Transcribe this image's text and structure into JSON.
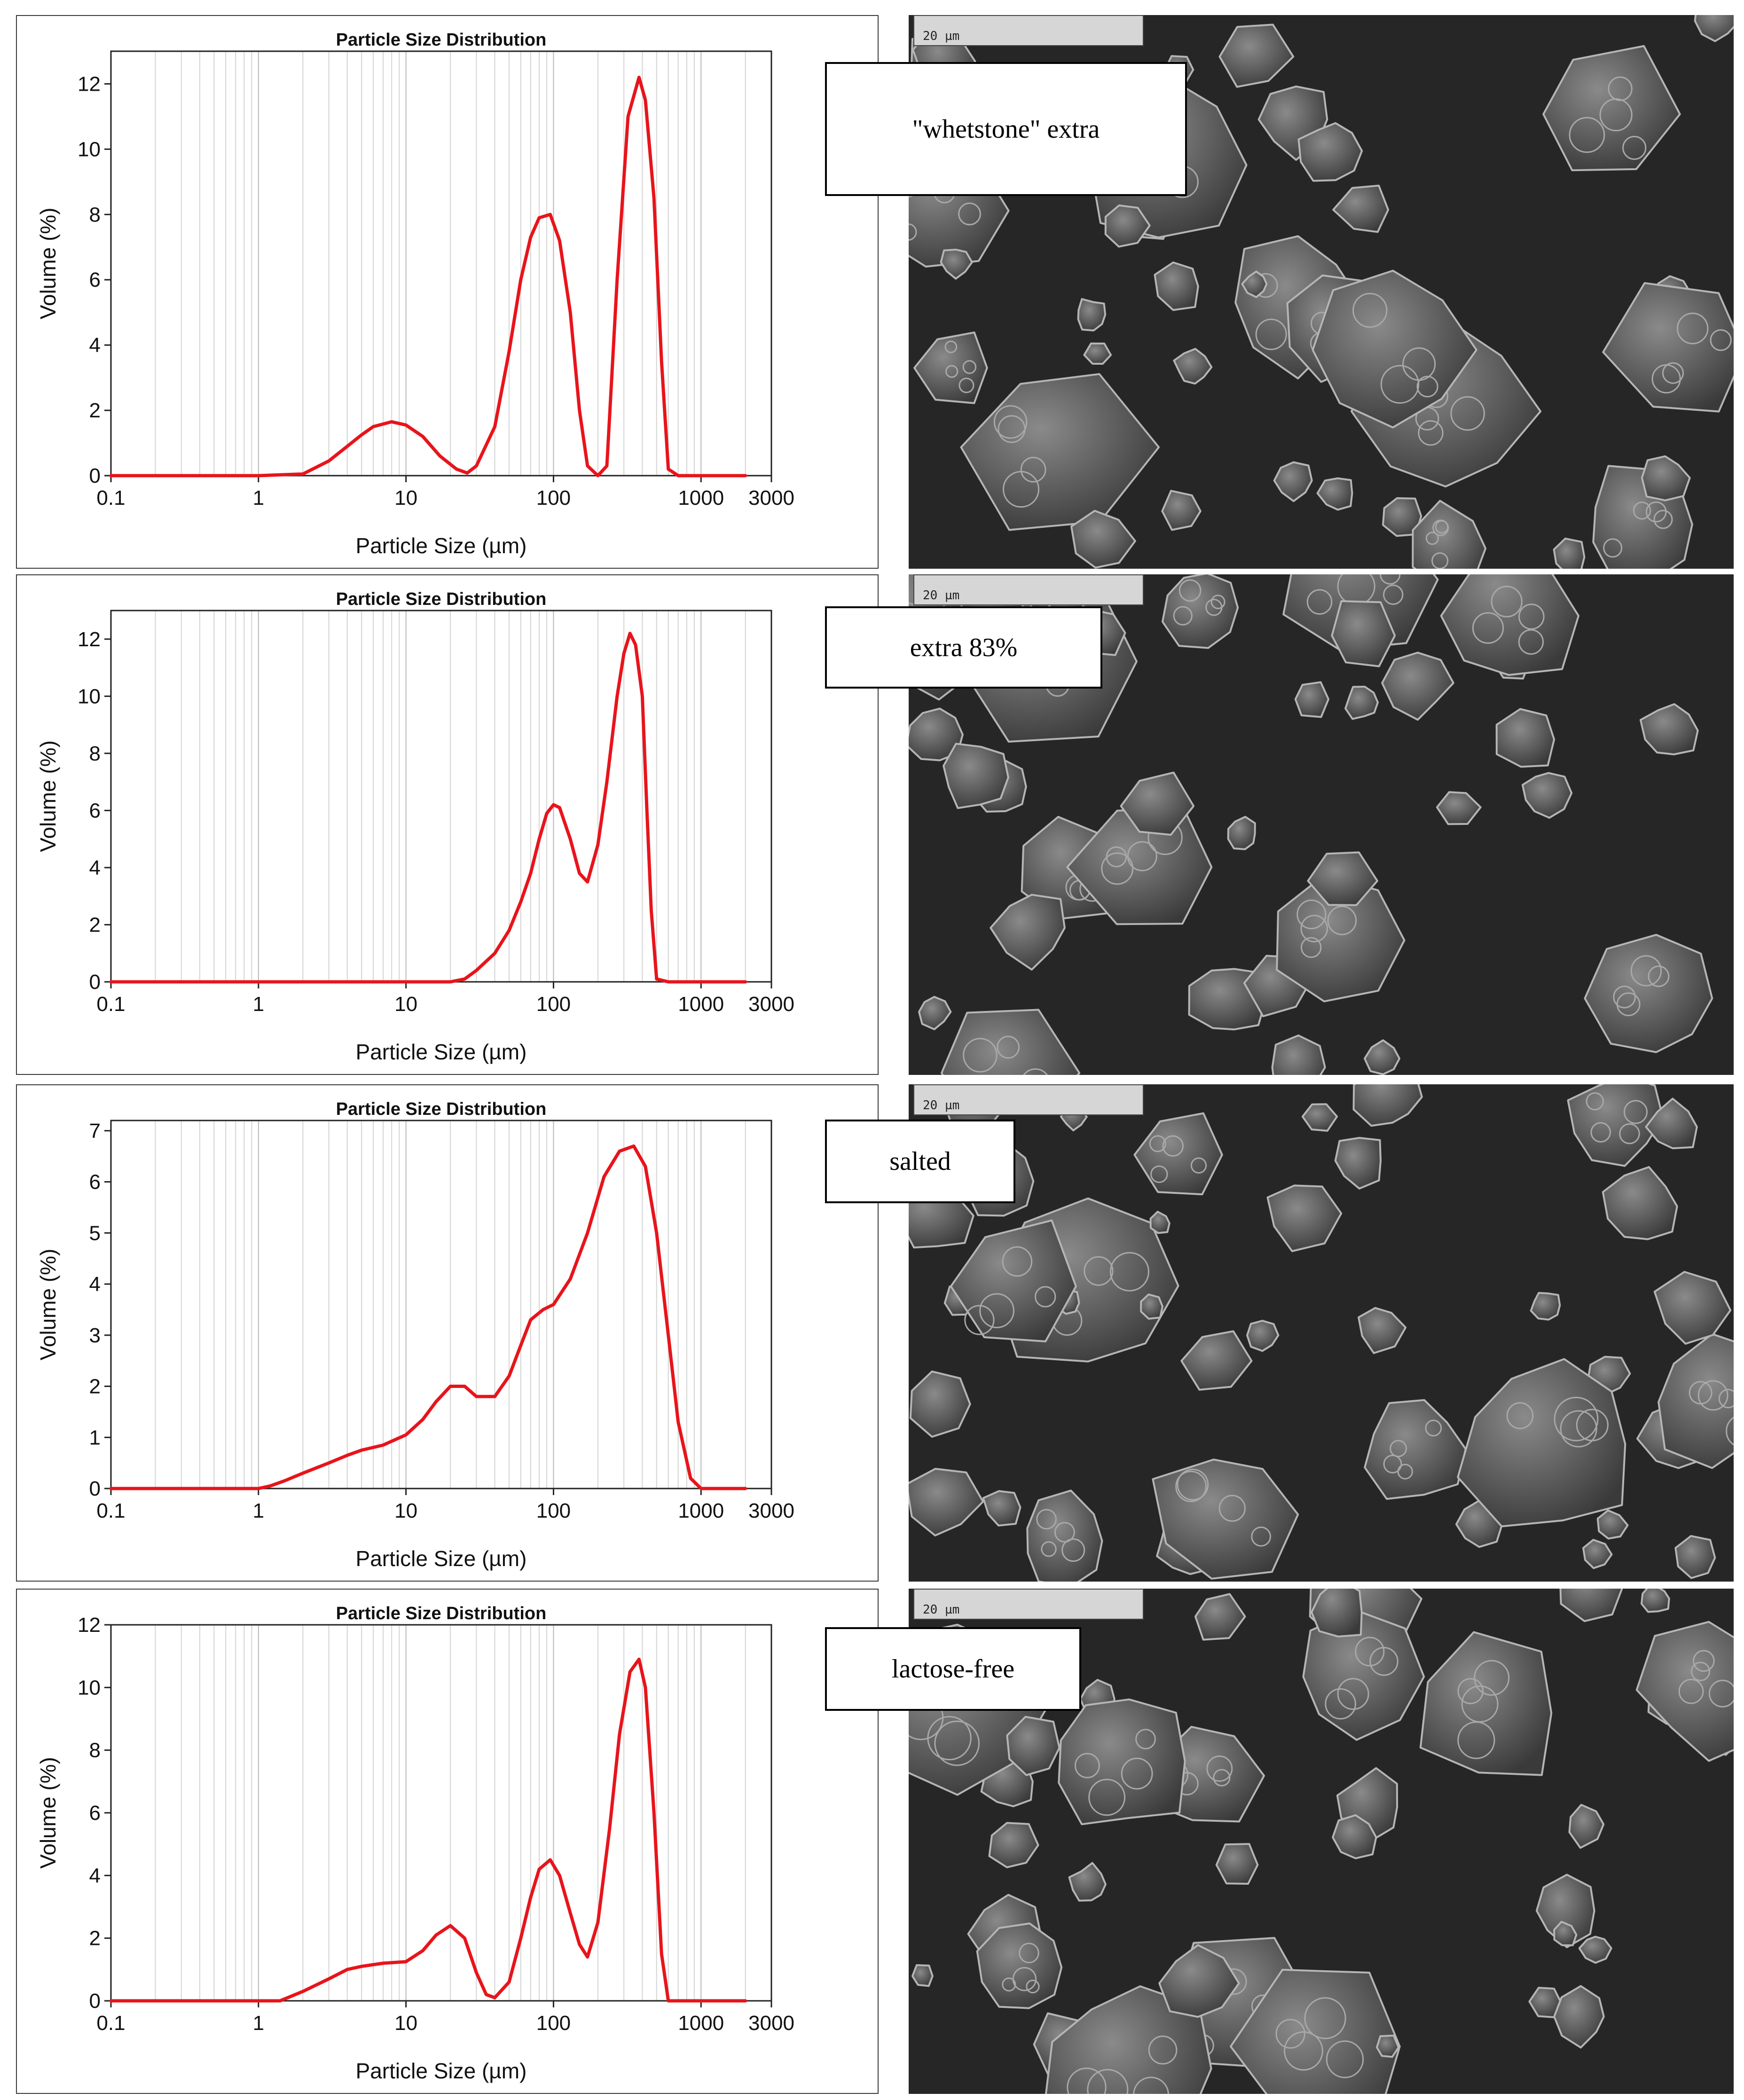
{
  "chart_data": [
    {
      "type": "line",
      "title": "Particle Size Distribution",
      "xlabel": "Particle Size (µm)",
      "ylabel": "Volume (%)",
      "x_scale": "log",
      "xlim": [
        0.1,
        3000
      ],
      "ylim": [
        0,
        13
      ],
      "xticks": [
        0.1,
        1,
        10,
        100,
        1000,
        3000
      ],
      "xtick_labels": [
        "0.1",
        "1",
        "10",
        "100",
        "1000",
        "3000"
      ],
      "yticks": [
        0,
        2,
        4,
        6,
        8,
        10,
        12
      ],
      "ytick_labels": [
        "0",
        "2",
        "4",
        "6",
        "8",
        "10",
        "12"
      ],
      "grid": true,
      "series": [
        {
          "color": "#e8141b",
          "x": [
            0.1,
            1,
            2,
            3,
            4,
            5,
            6,
            8,
            10,
            13,
            17,
            22,
            26,
            30,
            40,
            50,
            60,
            70,
            80,
            95,
            110,
            130,
            150,
            170,
            200,
            230,
            270,
            320,
            380,
            420,
            480,
            540,
            600,
            700,
            1000,
            2000
          ],
          "y": [
            0,
            0,
            0.05,
            0.45,
            0.9,
            1.25,
            1.5,
            1.65,
            1.55,
            1.2,
            0.6,
            0.2,
            0.08,
            0.3,
            1.5,
            3.8,
            6.0,
            7.3,
            7.9,
            8.0,
            7.2,
            5.0,
            2.0,
            0.3,
            0,
            0.3,
            6.0,
            11.0,
            12.2,
            11.5,
            8.5,
            3.5,
            0.2,
            0,
            0,
            0
          ]
        }
      ]
    },
    {
      "type": "line",
      "title": "Particle Size Distribution",
      "xlabel": "Particle Size (µm)",
      "ylabel": "Volume (%)",
      "x_scale": "log",
      "xlim": [
        0.1,
        3000
      ],
      "ylim": [
        0,
        13
      ],
      "xticks": [
        0.1,
        1,
        10,
        100,
        1000,
        3000
      ],
      "xtick_labels": [
        "0.1",
        "1",
        "10",
        "100",
        "1000",
        "3000"
      ],
      "yticks": [
        0,
        2,
        4,
        6,
        8,
        10,
        12
      ],
      "ytick_labels": [
        "0",
        "2",
        "4",
        "6",
        "8",
        "10",
        "12"
      ],
      "grid": true,
      "series": [
        {
          "color": "#e8141b",
          "x": [
            0.1,
            10,
            20,
            25,
            30,
            40,
            50,
            60,
            70,
            80,
            90,
            100,
            110,
            130,
            150,
            170,
            200,
            230,
            270,
            300,
            330,
            360,
            400,
            430,
            460,
            500,
            600,
            1000,
            2000
          ],
          "y": [
            0,
            0,
            0,
            0.1,
            0.4,
            1.0,
            1.8,
            2.8,
            3.8,
            5.0,
            5.9,
            6.2,
            6.1,
            5.0,
            3.8,
            3.5,
            4.8,
            7.0,
            10.0,
            11.5,
            12.2,
            11.8,
            10.0,
            6.0,
            2.5,
            0.1,
            0,
            0,
            0
          ]
        }
      ]
    },
    {
      "type": "line",
      "title": "Particle Size Distribution",
      "xlabel": "Particle Size (µm)",
      "ylabel": "Volume (%)",
      "x_scale": "log",
      "xlim": [
        0.1,
        3000
      ],
      "ylim": [
        0,
        7.2
      ],
      "xticks": [
        0.1,
        1,
        10,
        100,
        1000,
        3000
      ],
      "xtick_labels": [
        "0.1",
        "1",
        "10",
        "100",
        "1000",
        "3000"
      ],
      "yticks": [
        0,
        1,
        2,
        3,
        4,
        5,
        6,
        7
      ],
      "ytick_labels": [
        "0",
        "1",
        "2",
        "3",
        "4",
        "5",
        "6",
        "7"
      ],
      "grid": true,
      "series": [
        {
          "color": "#e8141b",
          "x": [
            0.1,
            1,
            1.2,
            1.5,
            2,
            3,
            4,
            5,
            7,
            10,
            13,
            16,
            20,
            25,
            30,
            40,
            50,
            60,
            70,
            85,
            100,
            130,
            170,
            220,
            280,
            350,
            420,
            500,
            600,
            700,
            850,
            1000,
            2000
          ],
          "y": [
            0,
            0,
            0.05,
            0.15,
            0.3,
            0.5,
            0.65,
            0.75,
            0.85,
            1.05,
            1.35,
            1.7,
            2.0,
            2.0,
            1.8,
            1.8,
            2.2,
            2.8,
            3.3,
            3.5,
            3.6,
            4.1,
            5.0,
            6.1,
            6.6,
            6.7,
            6.3,
            5.0,
            3.0,
            1.3,
            0.2,
            0,
            0
          ]
        }
      ]
    },
    {
      "type": "line",
      "title": "Particle Size Distribution",
      "xlabel": "Particle Size (µm)",
      "ylabel": "Volume (%)",
      "x_scale": "log",
      "xlim": [
        0.1,
        3000
      ],
      "ylim": [
        0,
        12
      ],
      "xticks": [
        0.1,
        1,
        10,
        100,
        1000,
        3000
      ],
      "xtick_labels": [
        "0.1",
        "1",
        "10",
        "100",
        "1000",
        "3000"
      ],
      "yticks": [
        0,
        2,
        4,
        6,
        8,
        10,
        12
      ],
      "ytick_labels": [
        "0",
        "2",
        "4",
        "6",
        "8",
        "10",
        "12"
      ],
      "grid": true,
      "series": [
        {
          "color": "#e8141b",
          "x": [
            0.1,
            1,
            1.4,
            2,
            3,
            4,
            5,
            7,
            10,
            13,
            16,
            20,
            25,
            30,
            35,
            40,
            50,
            60,
            70,
            80,
            95,
            110,
            130,
            150,
            170,
            200,
            240,
            280,
            330,
            380,
            420,
            480,
            540,
            600,
            1000,
            2000
          ],
          "y": [
            0,
            0,
            0,
            0.3,
            0.7,
            1.0,
            1.1,
            1.2,
            1.25,
            1.6,
            2.1,
            2.4,
            2.0,
            0.9,
            0.2,
            0.1,
            0.6,
            2.0,
            3.3,
            4.2,
            4.5,
            4.0,
            2.8,
            1.8,
            1.4,
            2.5,
            5.5,
            8.5,
            10.5,
            10.9,
            10.0,
            6.0,
            1.5,
            0,
            0,
            0
          ]
        }
      ]
    }
  ],
  "sample_labels": [
    "\"whetstone\" extra",
    "extra 83%",
    "salted",
    "lactose-free"
  ],
  "scale_bar_text": "20 µm"
}
